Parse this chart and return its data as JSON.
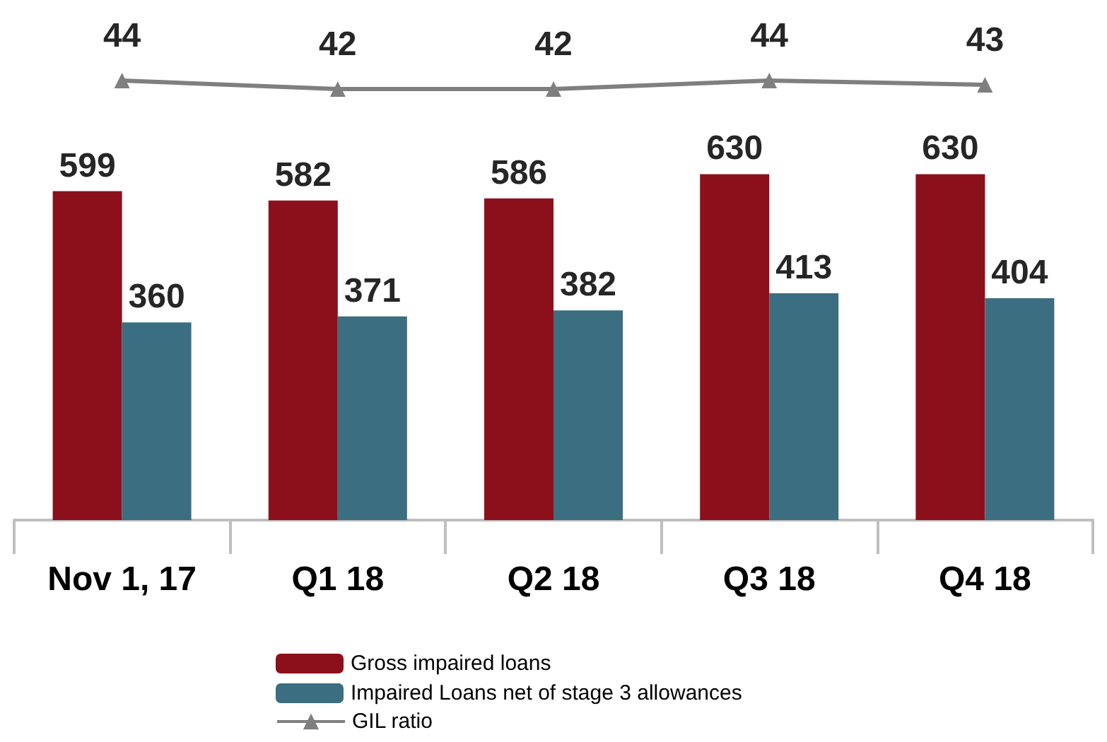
{
  "chart_data": [
    {
      "type": "line",
      "categories": [
        null,
        null,
        null,
        null,
        null
      ],
      "series": [
        {
          "name": "GIL ratio",
          "color": "#7f7f7f",
          "marker": "triangle",
          "values": [
            44,
            42,
            42,
            44,
            43
          ]
        }
      ],
      "data_labels": true,
      "legend": "bottom"
    },
    {
      "type": "bar",
      "categories": [
        "Nov 1, 17",
        "Q1 18",
        "Q2 18",
        "Q3 18",
        "Q4 18"
      ],
      "series": [
        {
          "name": "Gross impaired loans",
          "color": "#8c101c",
          "values": [
            599,
            582,
            586,
            630,
            630
          ]
        },
        {
          "name": "Impaired Loans net of stage 3 allowances",
          "color": "#3b6e80",
          "values": [
            360,
            371,
            382,
            413,
            404
          ]
        }
      ],
      "data_labels": true,
      "legend": "bottom"
    }
  ]
}
